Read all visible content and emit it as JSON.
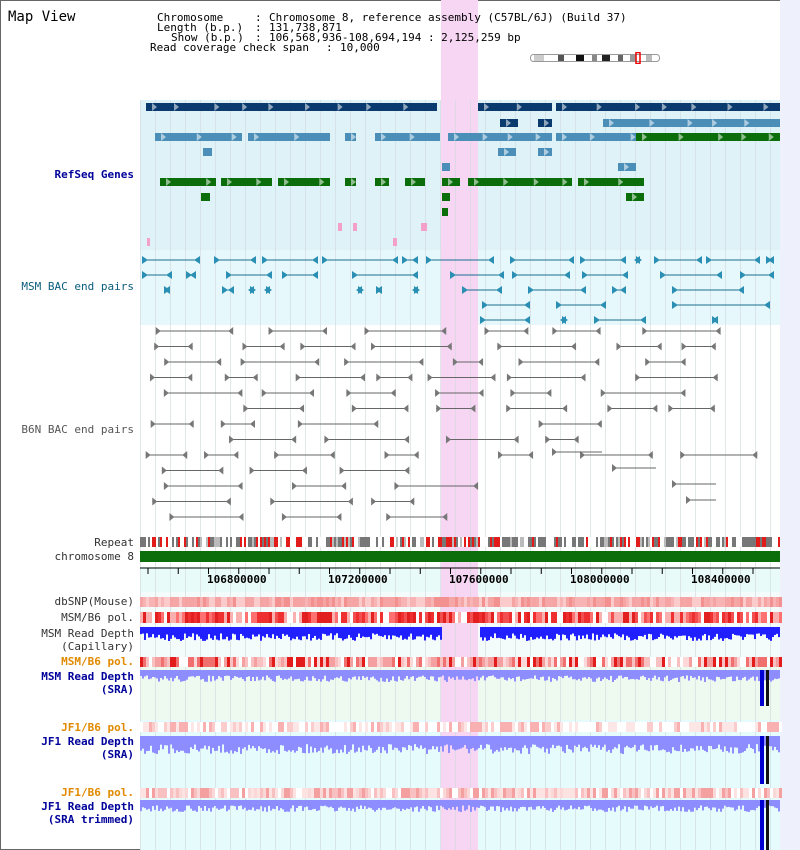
{
  "view_title": "Map View",
  "header": {
    "chromosome_label": "Chromosome",
    "chromosome_value": "Chromosome 8, reference assembly (C57BL/6J) (Build 37)",
    "length_label": "Length (b.p.)",
    "length_value": "131,738,871",
    "show_label": "Show (b.p.)",
    "show_value": "106,568,936-108,694,194 : 2,125,259 bp",
    "coverage_label": "Read coverage check span",
    "coverage_value": "10,000"
  },
  "tracks": {
    "refseq": "RefSeq Genes",
    "msm_bac": "MSM BAC end pairs",
    "b6n_bac": "B6N BAC end pairs",
    "repeat": "Repeat",
    "chromosome": "chromosome 8",
    "dbsnp": "dbSNP(Mouse)",
    "msm_b6_pol_1": "MSM/B6 pol.",
    "msm_depth_cap_1": "MSM Read Depth",
    "msm_depth_cap_2": "(Capillary)",
    "msm_b6_pol_2": "MSM/B6 pol.",
    "msm_depth_sra_1": "MSM Read Depth",
    "msm_depth_sra_2": "(SRA)",
    "jf1_b6_pol_1": "JF1/B6 pol.",
    "jf1_depth_sra_1": "JF1 Read Depth",
    "jf1_depth_sra_2": "(SRA)",
    "jf1_b6_pol_2": "JF1/B6 pol.",
    "jf1_depth_trim_1": "JF1 Read Depth",
    "jf1_depth_trim_2": "(SRA trimmed)"
  },
  "axis_ticks": [
    "106800000",
    "107200000",
    "107600000",
    "108000000",
    "108400000"
  ],
  "colors": {
    "gene_dark": "#0b3a6e",
    "gene_mid": "#4b8fb8",
    "gene_green": "#0b6e0b",
    "highlight": "#f7d6f4",
    "refseq_bg": "#dff2f8",
    "repeat_red": "#e21b1b",
    "depth_blue": "#1f1fff",
    "depth_light": "#8d8dff"
  }
}
